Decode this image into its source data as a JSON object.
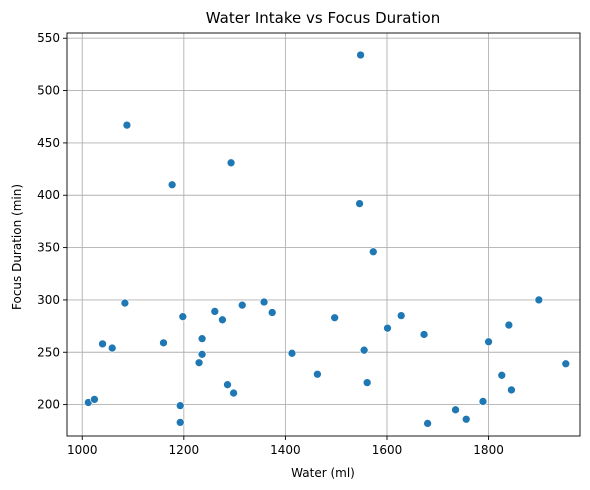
{
  "colors": {
    "point": "#1f77b4",
    "grid": "#b0b0b0",
    "frame": "#000000",
    "background": "#ffffff"
  },
  "chart_data": {
    "type": "scatter",
    "title": "Water Intake vs Focus Duration",
    "xlabel": "Water (ml)",
    "ylabel": "Focus Duration (min)",
    "xlim": [
      970,
      1980
    ],
    "ylim": [
      170,
      555
    ],
    "xticks": [
      1000,
      1200,
      1400,
      1600,
      1800
    ],
    "yticks": [
      200,
      250,
      300,
      350,
      400,
      450,
      500,
      550
    ],
    "xtick_labels": [
      "1000",
      "1200",
      "1400",
      "1600",
      "1800"
    ],
    "ytick_labels": [
      "200",
      "250",
      "300",
      "350",
      "400",
      "450",
      "500",
      "550"
    ],
    "grid": true,
    "points": [
      {
        "x": 1012,
        "y": 202
      },
      {
        "x": 1024,
        "y": 205
      },
      {
        "x": 1040,
        "y": 258
      },
      {
        "x": 1059,
        "y": 254
      },
      {
        "x": 1084,
        "y": 297
      },
      {
        "x": 1088,
        "y": 467
      },
      {
        "x": 1160,
        "y": 259
      },
      {
        "x": 1177,
        "y": 410
      },
      {
        "x": 1193,
        "y": 199
      },
      {
        "x": 1193,
        "y": 183
      },
      {
        "x": 1198,
        "y": 284
      },
      {
        "x": 1230,
        "y": 240
      },
      {
        "x": 1236,
        "y": 263
      },
      {
        "x": 1236,
        "y": 248
      },
      {
        "x": 1261,
        "y": 289
      },
      {
        "x": 1276,
        "y": 281
      },
      {
        "x": 1286,
        "y": 219
      },
      {
        "x": 1293,
        "y": 431
      },
      {
        "x": 1298,
        "y": 211
      },
      {
        "x": 1315,
        "y": 295
      },
      {
        "x": 1358,
        "y": 298
      },
      {
        "x": 1374,
        "y": 288
      },
      {
        "x": 1413,
        "y": 249
      },
      {
        "x": 1463,
        "y": 229
      },
      {
        "x": 1497,
        "y": 283
      },
      {
        "x": 1546,
        "y": 392
      },
      {
        "x": 1548,
        "y": 534
      },
      {
        "x": 1555,
        "y": 252
      },
      {
        "x": 1561,
        "y": 221
      },
      {
        "x": 1573,
        "y": 346
      },
      {
        "x": 1601,
        "y": 273
      },
      {
        "x": 1628,
        "y": 285
      },
      {
        "x": 1673,
        "y": 267
      },
      {
        "x": 1680,
        "y": 182
      },
      {
        "x": 1735,
        "y": 195
      },
      {
        "x": 1756,
        "y": 186
      },
      {
        "x": 1789,
        "y": 203
      },
      {
        "x": 1800,
        "y": 260
      },
      {
        "x": 1826,
        "y": 228
      },
      {
        "x": 1840,
        "y": 276
      },
      {
        "x": 1845,
        "y": 214
      },
      {
        "x": 1899,
        "y": 300
      },
      {
        "x": 1952,
        "y": 239
      }
    ]
  }
}
